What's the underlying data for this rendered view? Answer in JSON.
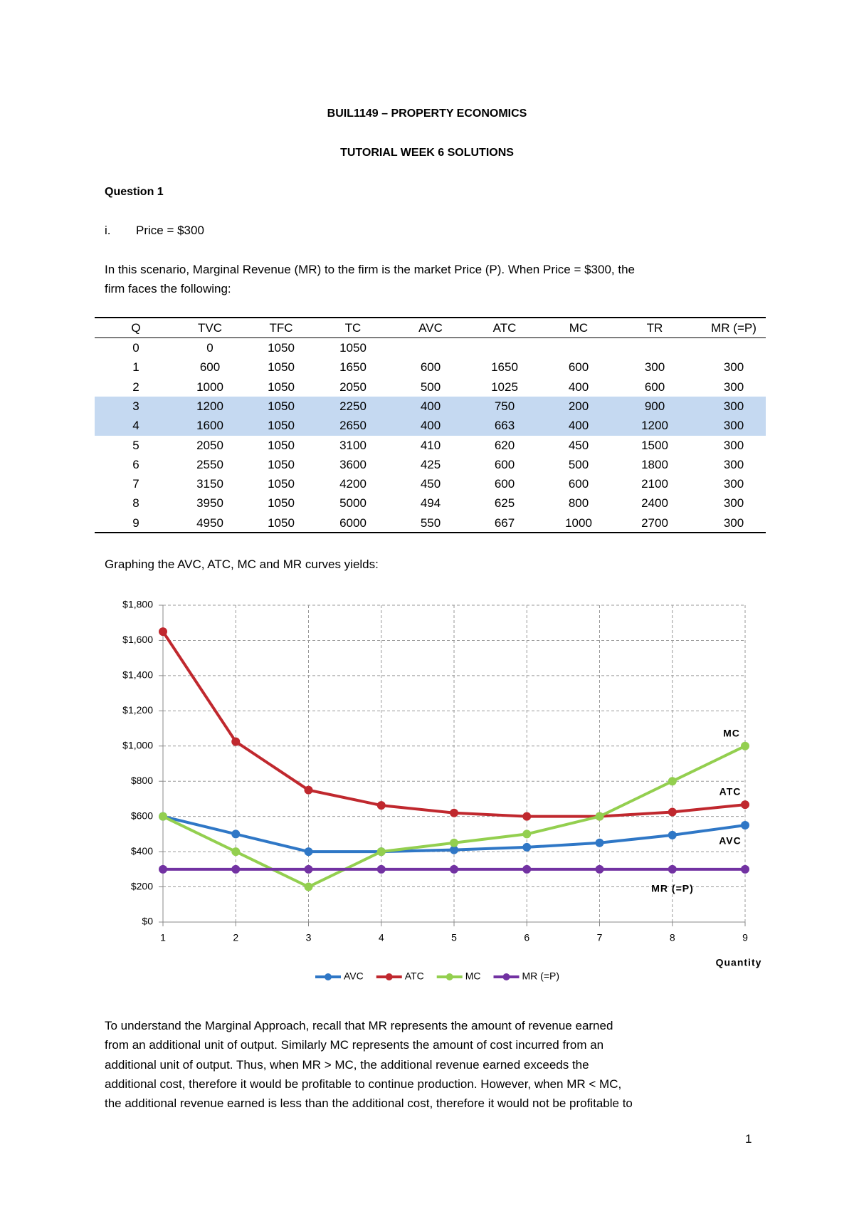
{
  "header": {
    "course": "BUIL1149 – PROPERTY ECONOMICS",
    "title": "TUTORIAL WEEK 6 SOLUTIONS"
  },
  "question": {
    "heading": "Question 1",
    "item_marker": "i.",
    "item_text": "Price = $300",
    "intro_lines": [
      "In this scenario, Marginal Revenue (MR) to the firm is the market Price (P). When Price = $300, the",
      "firm faces the following:"
    ]
  },
  "table": {
    "header": [
      "Q",
      "TVC",
      "TFC",
      "TC",
      "AVC",
      "ATC",
      "MC",
      "TR",
      "MR (=P)"
    ],
    "rows": [
      [
        "0",
        "0",
        "1050",
        "1050"
      ],
      [
        "1",
        "600",
        "1050",
        "1650",
        "600",
        "1650",
        "600",
        "300",
        "300"
      ],
      [
        "2",
        "1000",
        "1050",
        "2050",
        "500",
        "1025",
        "400",
        "600",
        "300"
      ],
      [
        "3",
        "1200",
        "1050",
        "2250",
        "400",
        "750",
        "200",
        "900",
        "300"
      ],
      [
        "4",
        "1600",
        "1050",
        "2650",
        "400",
        "663",
        "400",
        "1200",
        "300"
      ],
      [
        "5",
        "2050",
        "1050",
        "3100",
        "410",
        "620",
        "450",
        "1500",
        "300"
      ],
      [
        "6",
        "2550",
        "1050",
        "3600",
        "425",
        "600",
        "500",
        "1800",
        "300"
      ],
      [
        "7",
        "3150",
        "1050",
        "4200",
        "450",
        "600",
        "600",
        "2100",
        "300"
      ],
      [
        "8",
        "3950",
        "1050",
        "5000",
        "494",
        "625",
        "800",
        "2400",
        "300"
      ],
      [
        "9",
        "4950",
        "1050",
        "6000",
        "550",
        "667",
        "1000",
        "2700",
        "300"
      ]
    ]
  },
  "graph_intro": "Graphing the AVC, ATC, MC and MR curves yields:",
  "chart_data": {
    "type": "line",
    "x_label": "Quantity",
    "x": [
      1,
      2,
      3,
      4,
      5,
      6,
      7,
      8,
      9
    ],
    "xlim": [
      1,
      9
    ],
    "xticks": [
      1,
      2,
      3,
      4,
      5,
      6,
      7,
      8,
      9
    ],
    "ylim": [
      0,
      1800
    ],
    "yticks": [
      {
        "value": 0,
        "label": "$0"
      },
      {
        "value": 200,
        "label": "$200"
      },
      {
        "value": 400,
        "label": "$400"
      },
      {
        "value": 600,
        "label": "$600"
      },
      {
        "value": 800,
        "label": "$800"
      },
      {
        "value": 1000,
        "label": "$1,000"
      },
      {
        "value": 1200,
        "label": "$1,200"
      },
      {
        "value": 1400,
        "label": "$1,400"
      },
      {
        "value": 1600,
        "label": "$1,600"
      },
      {
        "value": 1800,
        "label": "$1,800"
      }
    ],
    "grid": true,
    "legend": "bottom",
    "series": [
      {
        "name": "AVC",
        "color": "#2f77c6",
        "values": [
          600,
          500,
          400,
          400,
          410,
          425,
          450,
          494,
          550
        ]
      },
      {
        "name": "ATC",
        "color": "#c0282e",
        "values": [
          1650,
          1025,
          750,
          663,
          620,
          600,
          600,
          625,
          667
        ]
      },
      {
        "name": "MC",
        "color": "#93cf4f",
        "values": [
          600,
          400,
          200,
          400,
          450,
          500,
          600,
          800,
          1000
        ]
      },
      {
        "name": "MR (=P)",
        "color": "#7232a2",
        "values": [
          300,
          300,
          300,
          300,
          300,
          300,
          300,
          300,
          300
        ]
      }
    ],
    "annotations": [
      "MC",
      "ATC",
      "AVC",
      "MR (=P)"
    ]
  },
  "body_lines": [
    "To understand the Marginal Approach, recall that MR represents the amount of revenue earned",
    "from an additional unit of output. Similarly MC represents the amount of cost incurred from an",
    "additional unit of output. Thus, when MR > MC, the additional revenue earned exceeds the",
    "additional cost, therefore it would be profitable to continue production. However, when MR < MC,",
    "the additional revenue earned is less than the additional cost, therefore it would not be profitable to"
  ],
  "page_number": "1"
}
